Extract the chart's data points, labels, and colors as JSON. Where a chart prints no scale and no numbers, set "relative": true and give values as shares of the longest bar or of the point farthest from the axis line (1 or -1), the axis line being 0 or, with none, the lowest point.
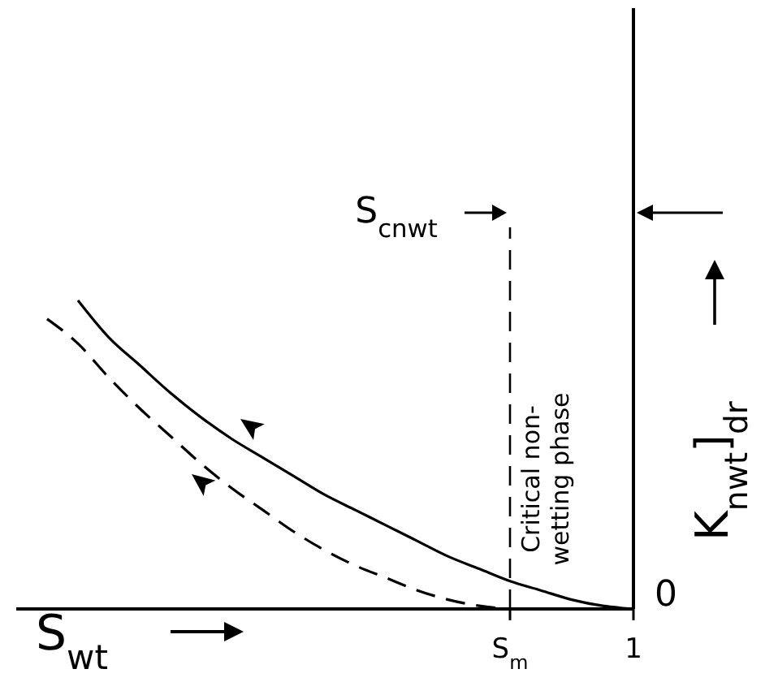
{
  "chart_data": {
    "type": "line",
    "relative": true,
    "xlabel": "S$_{wt}$",
    "ylabel": "K$_{nwt}$]$_{dr}$",
    "categories": [
      null,
      null,
      null,
      null,
      null,
      null,
      null,
      null,
      null,
      null,
      null,
      null,
      null,
      null,
      null,
      null,
      "S$_{m}$",
      null,
      null,
      null,
      "1"
    ],
    "ref_lines": [
      {
        "axis": "x",
        "value": "S$_{m}$",
        "label": "Critical non-wetting phase",
        "line_style": "dashed",
        "color": "#000000"
      }
    ],
    "annotations": [
      "0",
      "S$_{cnwt}$"
    ],
    "series": [
      {
        "color": "#000000",
        "line_style": "solid",
        "values": [
          null,
          null,
          1,
          0.88,
          0.79,
          0.7,
          0.62,
          0.55,
          0.49,
          0.43,
          0.37,
          0.32,
          0.27,
          0.22,
          0.17,
          0.13,
          0.09,
          0.06,
          0.03,
          0.01,
          0
        ]
      },
      {
        "color": "#000000",
        "line_style": "dashed",
        "values": [
          null,
          0.94,
          0.86,
          0.75,
          0.65,
          0.56,
          0.47,
          0.39,
          0.32,
          0.25,
          0.19,
          0.14,
          0.1,
          0.06,
          0.03,
          0.01,
          0,
          null,
          null,
          null,
          null
        ]
      }
    ]
  }
}
